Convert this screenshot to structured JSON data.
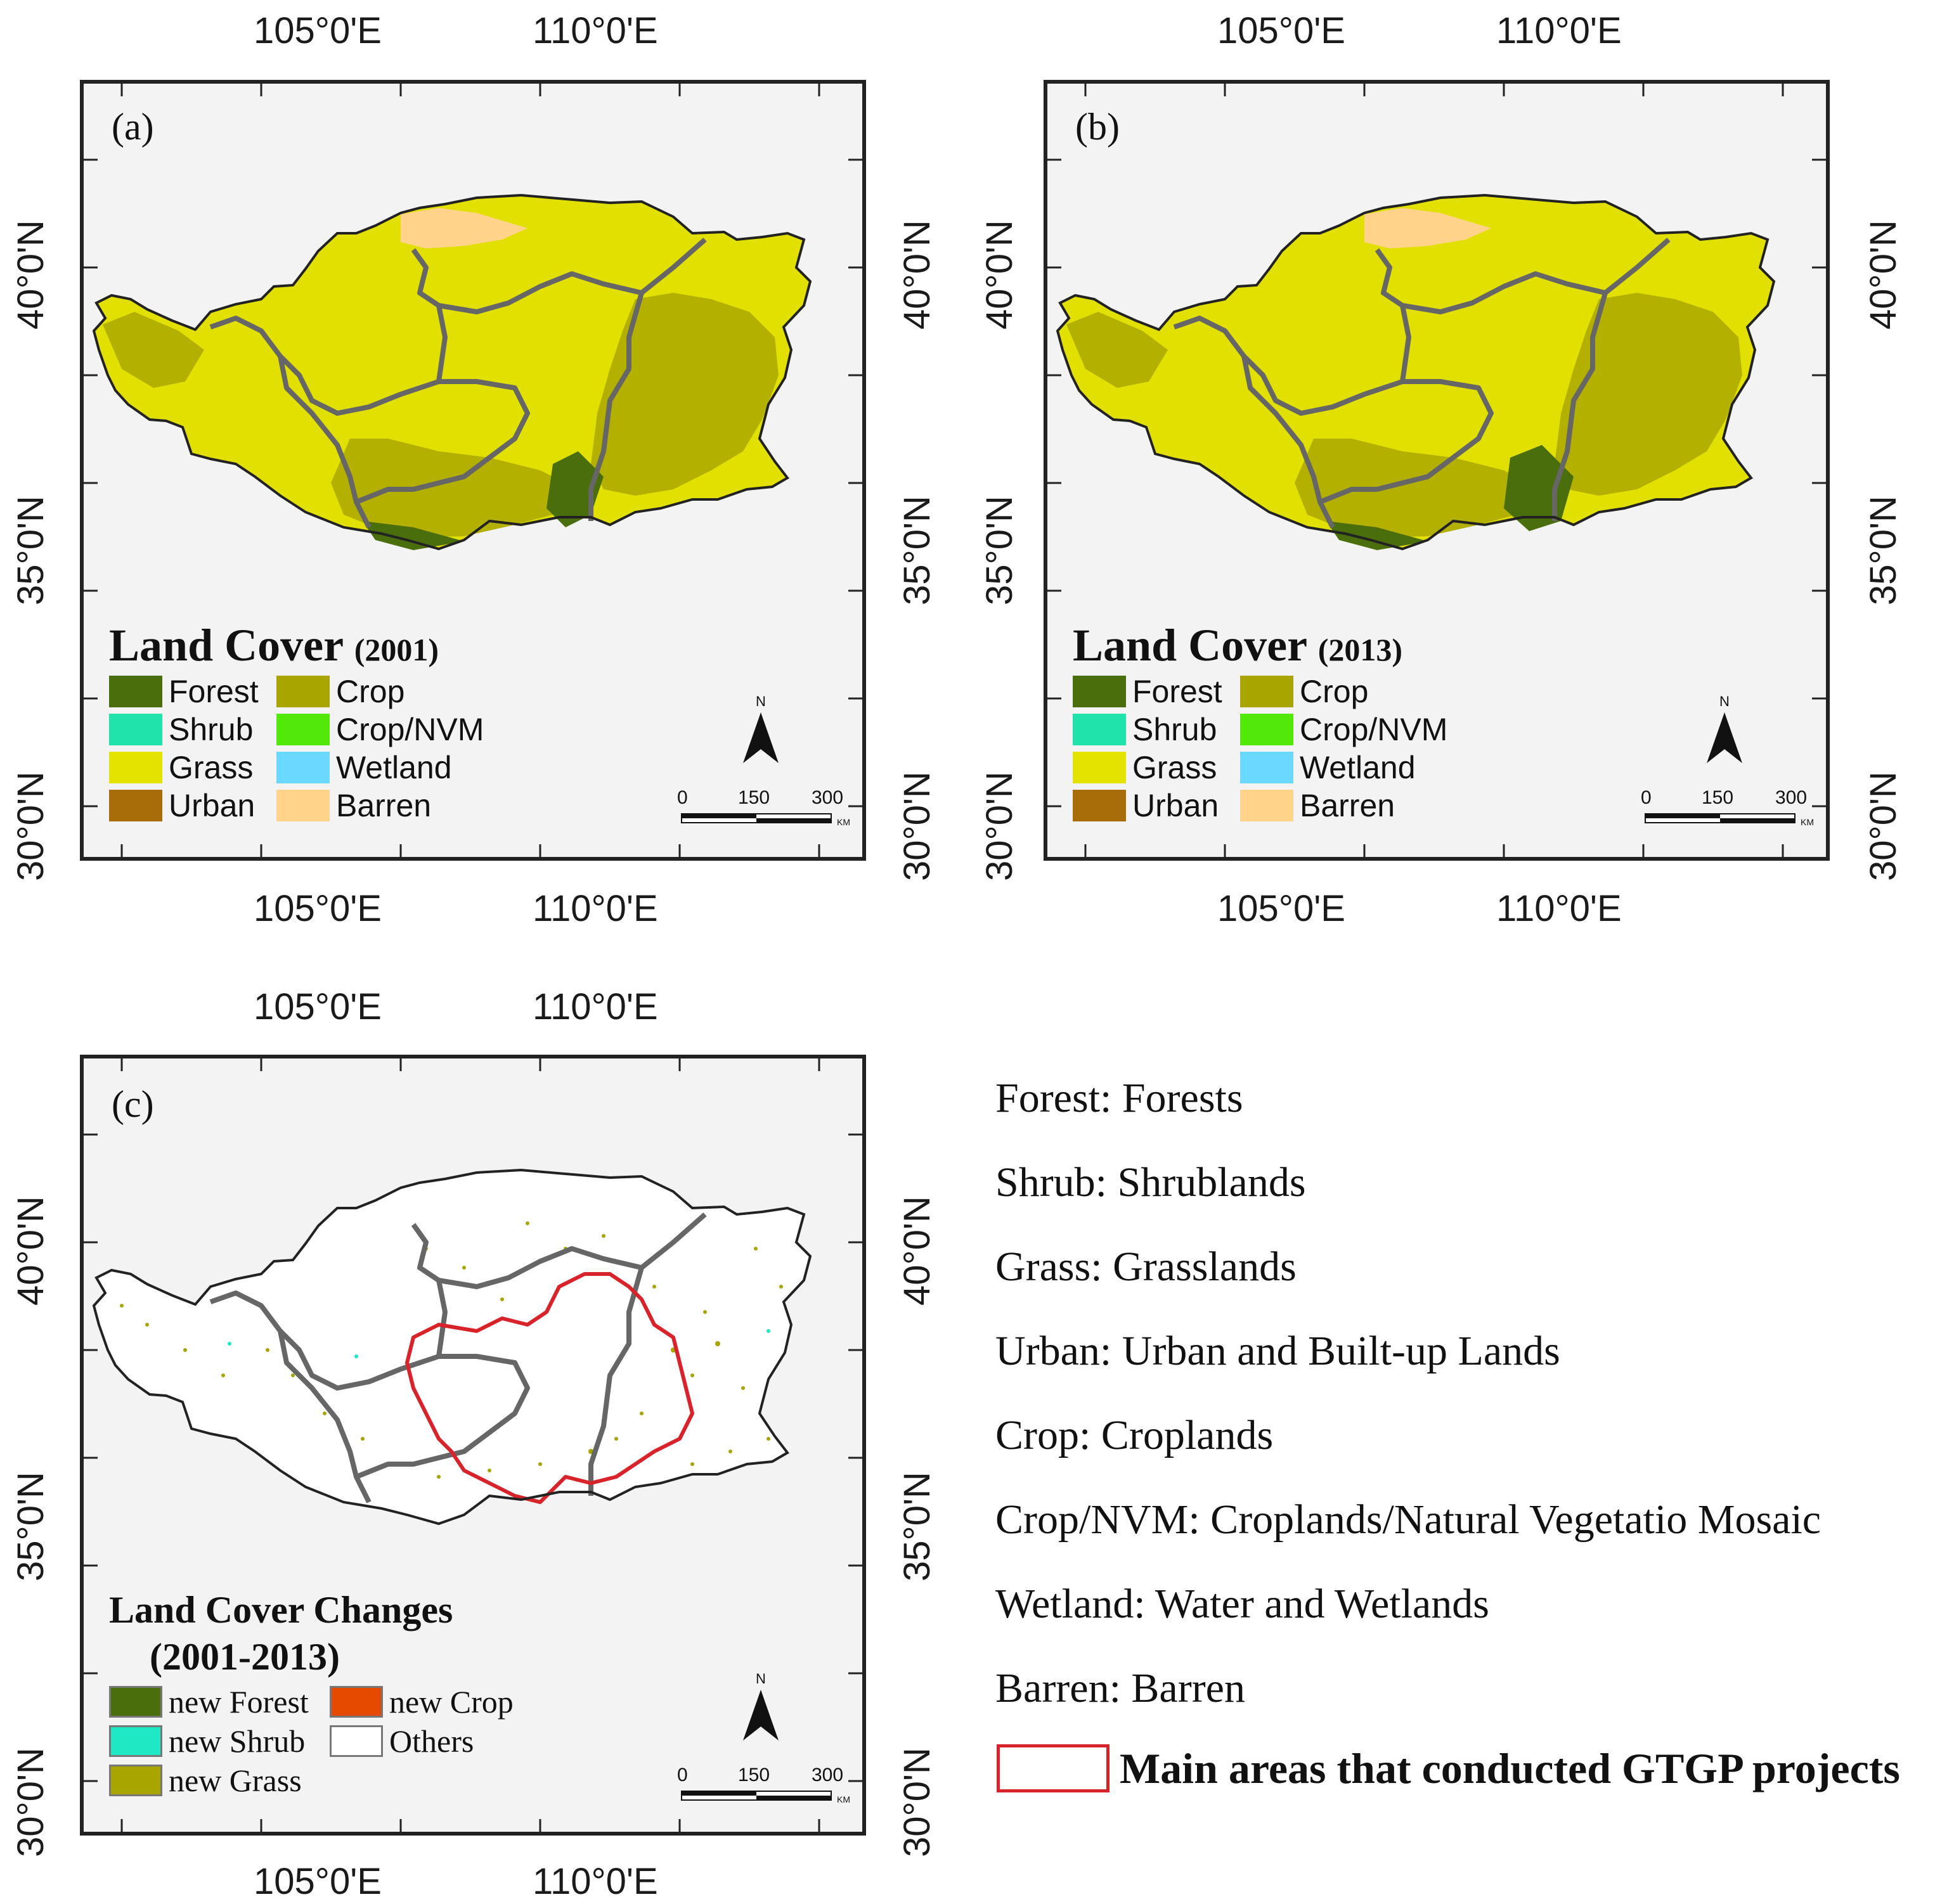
{
  "coords": {
    "lon": [
      "105°0'E",
      "110°0'E"
    ],
    "lat": [
      "40°0'N",
      "35°0'N",
      "30°0'N"
    ]
  },
  "panels": [
    {
      "id": "a",
      "label": "(a)",
      "legend_title": "Land Cover",
      "legend_year": "(2001)",
      "legend_items": [
        {
          "label": "Forest",
          "color": "#4a6e0c"
        },
        {
          "label": "Crop",
          "color": "#a8a500"
        },
        {
          "label": "Shrub",
          "color": "#1fe3a8"
        },
        {
          "label": "Crop/NVM",
          "color": "#52e80a"
        },
        {
          "label": "Grass",
          "color": "#e4e300"
        },
        {
          "label": "Wetland",
          "color": "#6ad8ff"
        },
        {
          "label": "Urban",
          "color": "#a86c08"
        },
        {
          "label": "Barren",
          "color": "#ffd38a"
        }
      ],
      "north": "N",
      "scale": [
        "0",
        "150",
        "300"
      ],
      "scale_unit": "KM"
    },
    {
      "id": "b",
      "label": "(b)",
      "legend_title": "Land Cover",
      "legend_year": "(2013)",
      "legend_items": [
        {
          "label": "Forest",
          "color": "#4a6e0c"
        },
        {
          "label": "Crop",
          "color": "#a8a500"
        },
        {
          "label": "Shrub",
          "color": "#1fe3a8"
        },
        {
          "label": "Crop/NVM",
          "color": "#52e80a"
        },
        {
          "label": "Grass",
          "color": "#e4e300"
        },
        {
          "label": "Wetland",
          "color": "#6ad8ff"
        },
        {
          "label": "Urban",
          "color": "#a86c08"
        },
        {
          "label": "Barren",
          "color": "#ffd38a"
        }
      ],
      "north": "N",
      "scale": [
        "0",
        "150",
        "300"
      ],
      "scale_unit": "KM"
    },
    {
      "id": "c",
      "label": "(c)",
      "legend_title_line1": "Land Cover Changes",
      "legend_title_line2": "(2001-2013)",
      "legend_items": [
        {
          "label": "new Forest",
          "color": "#4a6e0c"
        },
        {
          "label": "new Crop",
          "color": "#e64a00"
        },
        {
          "label": "new Shrub",
          "color": "#1fe8c4"
        },
        {
          "label": "Others",
          "color": "#ffffff"
        },
        {
          "label": "new Grass",
          "color": "#a8a500"
        }
      ],
      "north": "N",
      "scale": [
        "0",
        "150",
        "300"
      ],
      "scale_unit": "KM"
    }
  ],
  "definitions": [
    "Forest: Forests",
    "Shrub: Shrublands",
    "Grass: Grasslands",
    "Urban: Urban and Built-up Lands",
    "Crop: Croplands",
    "Crop/NVM: Croplands/Natural Vegetatio Mosaic",
    "Wetland: Water and Wetlands",
    "Barren: Barren"
  ],
  "gtgp_label": "Main areas that conducted GTGP projects",
  "colors": {
    "boundary": "#666666",
    "gtgp_outline": "#d9232a",
    "background": "#f3f3f4"
  }
}
